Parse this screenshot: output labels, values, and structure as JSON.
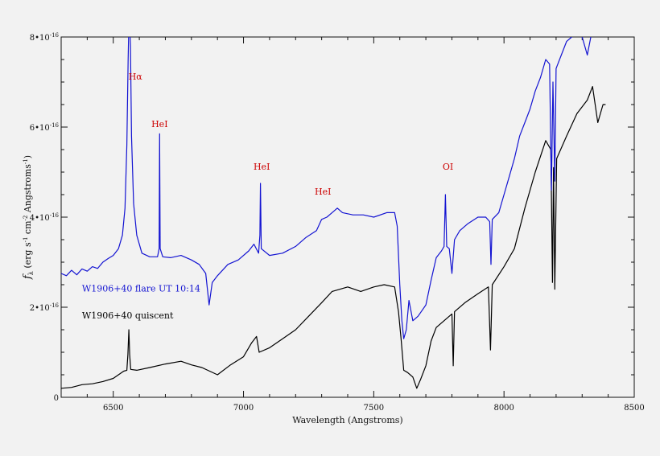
{
  "chart_data": {
    "type": "line",
    "title": "",
    "xlabel": "Wavelength (Angstroms)",
    "ylabel": "f_λ (erg s⁻¹ cm⁻² Angstroms⁻¹)",
    "ylabel_parts": {
      "main": "f",
      "sub": "λ",
      "text1": " (erg s",
      "sup1": "-1",
      "text2": " cm",
      "sup2": "-2",
      "text3": " Angstroms",
      "sup3": "-1",
      "text4": ")"
    },
    "xlim": [
      6300,
      8500
    ],
    "ylim": [
      0,
      8.0
    ],
    "y_unit_note": "values in units of 1e-16",
    "x_ticks": [
      {
        "value": 6500,
        "label": "6500"
      },
      {
        "value": 7000,
        "label": "7000"
      },
      {
        "value": 7500,
        "label": "7500"
      },
      {
        "value": 8000,
        "label": "8000"
      },
      {
        "value": 8500,
        "label": "8500"
      }
    ],
    "y_ticks": [
      {
        "value": 0,
        "label": "0"
      },
      {
        "value": 2,
        "label": "2•10",
        "exp": "-16"
      },
      {
        "value": 4,
        "label": "4•10",
        "exp": "-16"
      },
      {
        "value": 6,
        "label": "6•10",
        "exp": "-16"
      },
      {
        "value": 8,
        "label": "8•10",
        "exp": "-16"
      }
    ],
    "grid": false,
    "series": [
      {
        "name": "W1906+40 flare UT 10:14",
        "color": "#1414d2",
        "points": [
          [
            6300,
            2.75
          ],
          [
            6320,
            2.7
          ],
          [
            6340,
            2.82
          ],
          [
            6360,
            2.72
          ],
          [
            6380,
            2.85
          ],
          [
            6400,
            2.8
          ],
          [
            6420,
            2.9
          ],
          [
            6440,
            2.86
          ],
          [
            6460,
            3.0
          ],
          [
            6480,
            3.08
          ],
          [
            6500,
            3.15
          ],
          [
            6520,
            3.3
          ],
          [
            6535,
            3.6
          ],
          [
            6545,
            4.2
          ],
          [
            6552,
            5.6
          ],
          [
            6557,
            7.5
          ],
          [
            6560,
            8.3
          ],
          [
            6563,
            8.3
          ],
          [
            6566,
            7.8
          ],
          [
            6570,
            5.8
          ],
          [
            6578,
            4.3
          ],
          [
            6590,
            3.6
          ],
          [
            6610,
            3.2
          ],
          [
            6640,
            3.12
          ],
          [
            6670,
            3.12
          ],
          [
            6676,
            3.3
          ],
          [
            6678,
            5.85
          ],
          [
            6680,
            3.3
          ],
          [
            6690,
            3.12
          ],
          [
            6720,
            3.1
          ],
          [
            6760,
            3.15
          ],
          [
            6800,
            3.05
          ],
          [
            6830,
            2.95
          ],
          [
            6855,
            2.75
          ],
          [
            6868,
            2.05
          ],
          [
            6880,
            2.55
          ],
          [
            6900,
            2.7
          ],
          [
            6940,
            2.95
          ],
          [
            6980,
            3.05
          ],
          [
            7020,
            3.25
          ],
          [
            7040,
            3.4
          ],
          [
            7058,
            3.2
          ],
          [
            7063,
            3.6
          ],
          [
            7065,
            4.75
          ],
          [
            7068,
            3.3
          ],
          [
            7100,
            3.15
          ],
          [
            7150,
            3.2
          ],
          [
            7200,
            3.35
          ],
          [
            7240,
            3.55
          ],
          [
            7280,
            3.7
          ],
          [
            7300,
            3.95
          ],
          [
            7320,
            4.0
          ],
          [
            7340,
            4.1
          ],
          [
            7360,
            4.2
          ],
          [
            7380,
            4.1
          ],
          [
            7420,
            4.05
          ],
          [
            7460,
            4.05
          ],
          [
            7500,
            4.0
          ],
          [
            7550,
            4.1
          ],
          [
            7580,
            4.1
          ],
          [
            7590,
            3.8
          ],
          [
            7600,
            2.5
          ],
          [
            7608,
            1.7
          ],
          [
            7615,
            1.3
          ],
          [
            7625,
            1.5
          ],
          [
            7635,
            2.15
          ],
          [
            7650,
            1.7
          ],
          [
            7670,
            1.8
          ],
          [
            7700,
            2.05
          ],
          [
            7720,
            2.6
          ],
          [
            7740,
            3.1
          ],
          [
            7760,
            3.25
          ],
          [
            7770,
            3.35
          ],
          [
            7775,
            4.5
          ],
          [
            7780,
            3.35
          ],
          [
            7790,
            3.3
          ],
          [
            7800,
            2.75
          ],
          [
            7810,
            3.5
          ],
          [
            7830,
            3.7
          ],
          [
            7860,
            3.85
          ],
          [
            7900,
            4.0
          ],
          [
            7930,
            4.0
          ],
          [
            7945,
            3.9
          ],
          [
            7950,
            2.95
          ],
          [
            7955,
            3.95
          ],
          [
            7980,
            4.1
          ],
          [
            8000,
            4.5
          ],
          [
            8020,
            4.9
          ],
          [
            8040,
            5.3
          ],
          [
            8060,
            5.8
          ],
          [
            8080,
            6.1
          ],
          [
            8100,
            6.4
          ],
          [
            8120,
            6.8
          ],
          [
            8140,
            7.1
          ],
          [
            8160,
            7.5
          ],
          [
            8175,
            7.4
          ],
          [
            8182,
            4.6
          ],
          [
            8188,
            7.0
          ],
          [
            8195,
            4.8
          ],
          [
            8200,
            7.3
          ],
          [
            8220,
            7.6
          ],
          [
            8240,
            7.9
          ],
          [
            8260,
            8.0
          ],
          [
            8280,
            8.1
          ],
          [
            8300,
            8.0
          ],
          [
            8320,
            7.6
          ],
          [
            8340,
            8.2
          ],
          [
            8360,
            8.3
          ],
          [
            8390,
            8.3
          ]
        ]
      },
      {
        "name": "W1906+40 quiscent",
        "color": "#000000",
        "points": [
          [
            6300,
            0.2
          ],
          [
            6340,
            0.22
          ],
          [
            6380,
            0.28
          ],
          [
            6420,
            0.3
          ],
          [
            6460,
            0.35
          ],
          [
            6500,
            0.42
          ],
          [
            6520,
            0.5
          ],
          [
            6540,
            0.58
          ],
          [
            6552,
            0.6
          ],
          [
            6556,
            0.95
          ],
          [
            6560,
            1.5
          ],
          [
            6563,
            0.95
          ],
          [
            6567,
            0.62
          ],
          [
            6590,
            0.6
          ],
          [
            6640,
            0.66
          ],
          [
            6700,
            0.74
          ],
          [
            6760,
            0.8
          ],
          [
            6800,
            0.72
          ],
          [
            6840,
            0.66
          ],
          [
            6870,
            0.58
          ],
          [
            6900,
            0.5
          ],
          [
            6950,
            0.72
          ],
          [
            7000,
            0.9
          ],
          [
            7030,
            1.2
          ],
          [
            7050,
            1.35
          ],
          [
            7060,
            1.0
          ],
          [
            7100,
            1.1
          ],
          [
            7150,
            1.3
          ],
          [
            7200,
            1.5
          ],
          [
            7250,
            1.8
          ],
          [
            7300,
            2.1
          ],
          [
            7340,
            2.35
          ],
          [
            7400,
            2.45
          ],
          [
            7450,
            2.35
          ],
          [
            7500,
            2.45
          ],
          [
            7540,
            2.5
          ],
          [
            7580,
            2.45
          ],
          [
            7595,
            1.9
          ],
          [
            7605,
            1.3
          ],
          [
            7615,
            0.6
          ],
          [
            7630,
            0.55
          ],
          [
            7650,
            0.45
          ],
          [
            7665,
            0.2
          ],
          [
            7680,
            0.4
          ],
          [
            7700,
            0.7
          ],
          [
            7720,
            1.25
          ],
          [
            7740,
            1.55
          ],
          [
            7770,
            1.7
          ],
          [
            7790,
            1.8
          ],
          [
            7800,
            1.85
          ],
          [
            7805,
            0.7
          ],
          [
            7810,
            1.9
          ],
          [
            7850,
            2.1
          ],
          [
            7900,
            2.3
          ],
          [
            7940,
            2.45
          ],
          [
            7948,
            1.05
          ],
          [
            7955,
            2.5
          ],
          [
            8000,
            2.9
          ],
          [
            8040,
            3.3
          ],
          [
            8080,
            4.2
          ],
          [
            8120,
            5.0
          ],
          [
            8160,
            5.7
          ],
          [
            8180,
            5.5
          ],
          [
            8186,
            2.55
          ],
          [
            8190,
            5.1
          ],
          [
            8195,
            2.4
          ],
          [
            8202,
            5.3
          ],
          [
            8240,
            5.8
          ],
          [
            8280,
            6.3
          ],
          [
            8320,
            6.6
          ],
          [
            8340,
            6.9
          ],
          [
            8360,
            6.1
          ],
          [
            8380,
            6.5
          ],
          [
            8390,
            6.5
          ]
        ]
      }
    ],
    "annotations": [
      {
        "text": "Hα",
        "x": 6585,
        "y": 7.05
      },
      {
        "text": "HeI",
        "x": 6678,
        "y": 6.0
      },
      {
        "text": "HeI",
        "x": 7070,
        "y": 5.05
      },
      {
        "text": "HeI",
        "x": 7305,
        "y": 4.5
      },
      {
        "text": "OI",
        "x": 7785,
        "y": 5.05
      }
    ],
    "line_labels": [
      {
        "text": "W1906+40 flare UT 10:14",
        "color": "#1414d2",
        "x": 6380,
        "y": 2.35
      },
      {
        "text": "W1906+40 quiscent",
        "color": "#000000",
        "x": 6380,
        "y": 1.75
      }
    ]
  }
}
